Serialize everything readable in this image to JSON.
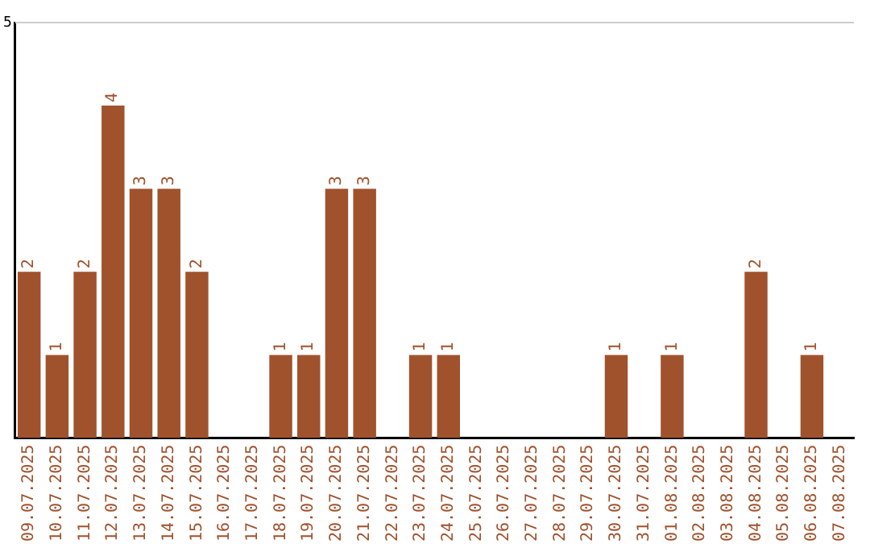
{
  "chart_data": {
    "type": "bar",
    "categories": [
      "09.07.2025",
      "10.07.2025",
      "11.07.2025",
      "12.07.2025",
      "13.07.2025",
      "14.07.2025",
      "15.07.2025",
      "16.07.2025",
      "17.07.2025",
      "18.07.2025",
      "19.07.2025",
      "20.07.2025",
      "21.07.2025",
      "22.07.2025",
      "23.07.2025",
      "24.07.2025",
      "25.07.2025",
      "26.07.2025",
      "27.07.2025",
      "28.07.2025",
      "29.07.2025",
      "30.07.2025",
      "31.07.2025",
      "01.08.2025",
      "02.08.2025",
      "03.08.2025",
      "04.08.2025",
      "05.08.2025",
      "06.08.2025",
      "07.08.2025"
    ],
    "values": [
      2,
      1,
      2,
      4,
      3,
      3,
      2,
      0,
      0,
      1,
      1,
      3,
      3,
      0,
      1,
      1,
      0,
      0,
      0,
      0,
      0,
      1,
      0,
      1,
      0,
      0,
      2,
      0,
      1,
      0
    ],
    "value_labels": [
      "2",
      "1",
      "2",
      "4",
      "3",
      "3",
      "2",
      null,
      null,
      "1",
      "1",
      "3",
      "3",
      null,
      "1",
      "1",
      null,
      null,
      null,
      null,
      null,
      "1",
      null,
      "1",
      null,
      null,
      "2",
      null,
      "1",
      null
    ],
    "color": "#a0522d",
    "ylim": [
      0,
      5
    ],
    "yticks": [
      5
    ],
    "ref_lines": [
      {
        "axis": "y",
        "value": 5,
        "color": "#cccccc"
      }
    ],
    "legend": false
  }
}
